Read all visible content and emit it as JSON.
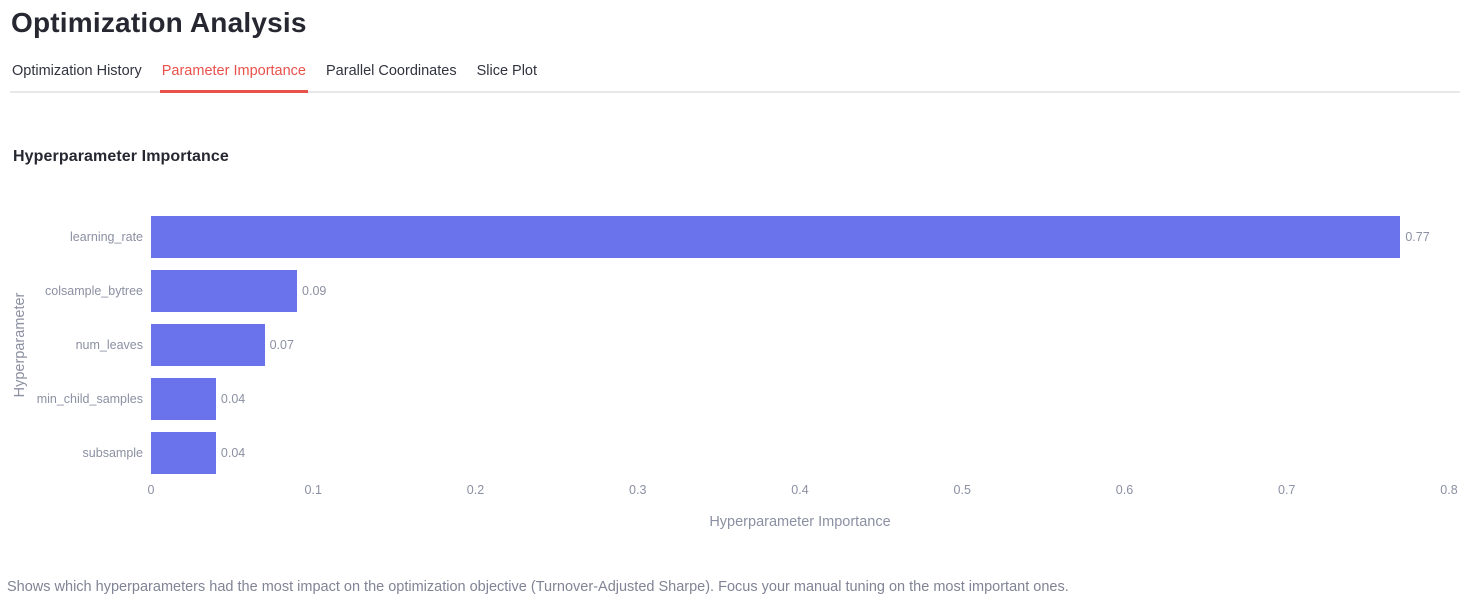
{
  "page": {
    "title": "Optimization Analysis"
  },
  "tabs": [
    {
      "label": "Optimization History",
      "active": false
    },
    {
      "label": "Parameter Importance",
      "active": true
    },
    {
      "label": "Parallel Coordinates",
      "active": false
    },
    {
      "label": "Slice Plot",
      "active": false
    }
  ],
  "section": {
    "heading": "Hyperparameter Importance"
  },
  "chart_data": {
    "type": "bar",
    "orientation": "horizontal",
    "categories": [
      "learning_rate",
      "colsample_bytree",
      "num_leaves",
      "min_child_samples",
      "subsample"
    ],
    "values": [
      0.77,
      0.09,
      0.07,
      0.04,
      0.04
    ],
    "value_labels": [
      "0.77",
      "0.09",
      "0.07",
      "0.04",
      "0.04"
    ],
    "xlabel": "Hyperparameter Importance",
    "ylabel": "Hyperparameter",
    "xlim": [
      0,
      0.8
    ],
    "xticks": [
      0,
      0.1,
      0.2,
      0.3,
      0.4,
      0.5,
      0.6,
      0.7,
      0.8
    ],
    "xtick_labels": [
      "0",
      "0.1",
      "0.2",
      "0.3",
      "0.4",
      "0.5",
      "0.6",
      "0.7",
      "0.8"
    ],
    "grid": false,
    "legend": "none",
    "bar_color": "#6a72ec"
  },
  "footer": {
    "note": "Shows which hyperparameters had the most impact on the optimization objective (Turnover-Adjusted Sharpe). Focus your manual tuning on the most important ones."
  },
  "theme": {
    "accent": "#e9514b",
    "bar_color": "#6a72ec",
    "text_dark": "#262730",
    "text_muted": "#808495",
    "chart_text": "#8b90a2",
    "border": "#e8e8e8"
  }
}
